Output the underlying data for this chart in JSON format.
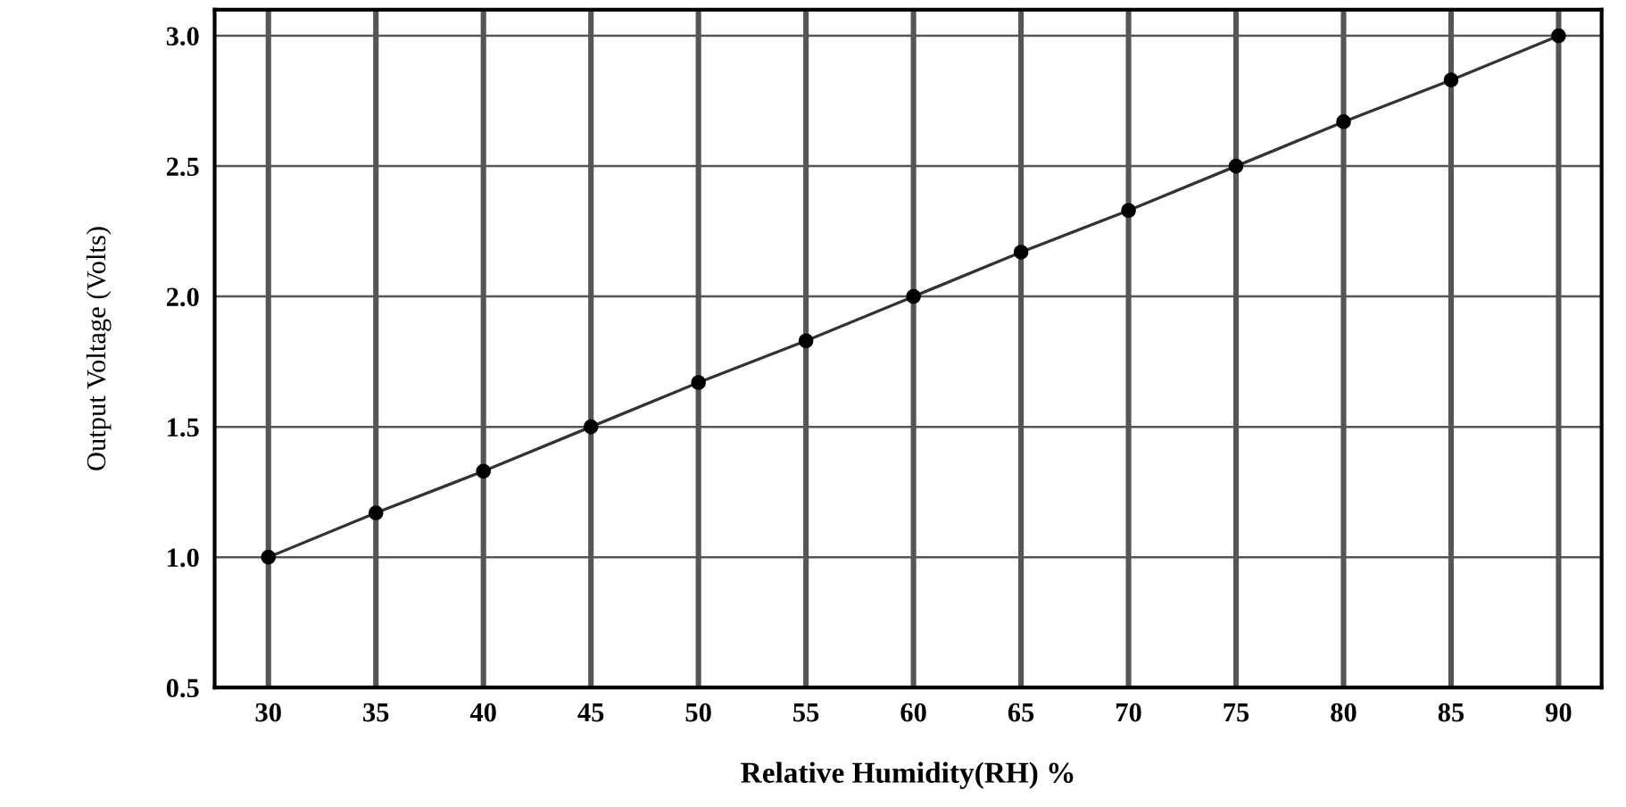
{
  "chart_data": {
    "type": "line",
    "xlabel": "Relative Humidity(RH) %",
    "ylabel": "Output Voltage (Volts)",
    "x": [
      30,
      35,
      40,
      45,
      50,
      55,
      60,
      65,
      70,
      75,
      80,
      85,
      90
    ],
    "series": [
      {
        "color": "#333333",
        "values": [
          1.0,
          1.17,
          1.33,
          1.5,
          1.67,
          1.83,
          2.0,
          2.17,
          2.33,
          2.5,
          2.67,
          2.83,
          3.0
        ]
      }
    ],
    "xlim": [
      27.5,
      92
    ],
    "ylim": [
      0.5,
      3.1
    ],
    "xticks": [
      30,
      35,
      40,
      45,
      50,
      55,
      60,
      65,
      70,
      75,
      80,
      85,
      90
    ],
    "yticks": [
      {
        "value": 0.5,
        "label": "0.5"
      },
      {
        "value": 1.0,
        "label": "1.0"
      },
      {
        "value": 1.5,
        "label": "1.5"
      },
      {
        "value": 2.0,
        "label": "2.0"
      },
      {
        "value": 2.5,
        "label": "2.5"
      },
      {
        "value": 3.0,
        "label": "3.0"
      }
    ],
    "grid": true,
    "marker": "circle",
    "line_style": "solid",
    "legend": false
  }
}
